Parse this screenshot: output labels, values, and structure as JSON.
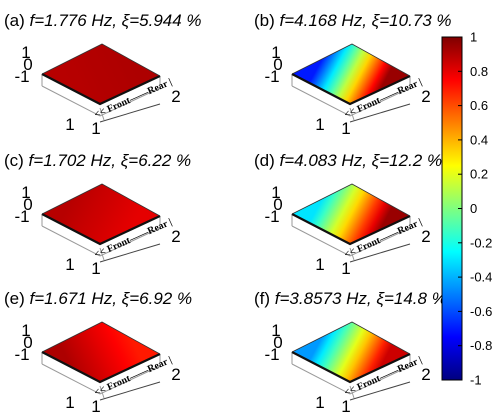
{
  "chart_data": {
    "type": "heatmap",
    "description_kind": "3d-mode-shape-surfaces",
    "panels": [
      {
        "id": "a",
        "label": "(a)",
        "freq_text": "f=1.776 Hz,",
        "damp_text": "ξ=5.944 %",
        "f_hz": 1.776,
        "xi_pct": 5.944,
        "corner_values": {
          "front_left": 0.9,
          "front_right": 0.88,
          "rear_left": 0.92,
          "rear_right": 0.9
        }
      },
      {
        "id": "b",
        "label": "(b)",
        "freq_text": "f=4.168 Hz,",
        "damp_text": "ξ=10.73 %",
        "f_hz": 4.168,
        "xi_pct": 10.73,
        "corner_values": {
          "front_left": -0.7,
          "front_right": 0.95,
          "rear_left": -0.7,
          "rear_right": 0.95
        }
      },
      {
        "id": "c",
        "label": "(c)",
        "freq_text": "f=1.702 Hz,",
        "damp_text": "ξ=6.22 %",
        "f_hz": 1.702,
        "xi_pct": 6.22,
        "corner_values": {
          "front_left": 0.88,
          "front_right": 0.85,
          "rear_left": 0.9,
          "rear_right": 0.75
        }
      },
      {
        "id": "d",
        "label": "(d)",
        "freq_text": "f=4.083 Hz,",
        "damp_text": "ξ=12.2 %",
        "f_hz": 4.083,
        "xi_pct": 12.2,
        "corner_values": {
          "front_left": -0.3,
          "front_right": 0.95,
          "rear_left": -0.3,
          "rear_right": 0.95
        }
      },
      {
        "id": "e",
        "label": "(e)",
        "freq_text": "f=1.671 Hz,",
        "damp_text": "ξ=6.92 %",
        "f_hz": 1.671,
        "xi_pct": 6.92,
        "corner_values": {
          "front_left": 0.92,
          "front_right": 0.9,
          "rear_left": 0.85,
          "rear_right": 0.55
        }
      },
      {
        "id": "f",
        "label": "(f)",
        "freq_text": "f=3.8573 Hz,",
        "damp_text": "ξ=14.8 %",
        "f_hz": 3.8573,
        "xi_pct": 14.8,
        "corner_values": {
          "front_left": -0.45,
          "front_right": 0.85,
          "rear_left": -0.45,
          "rear_right": 0.85
        }
      }
    ],
    "axes": {
      "z_ticks": [
        "1",
        "0",
        "-1"
      ],
      "z_range": [
        -1,
        1
      ],
      "x_tick": "1",
      "y_ticks": [
        "1",
        "2"
      ],
      "axis_label": "<< Front——Rear |"
    },
    "colorbar": {
      "range": [
        -1,
        1
      ],
      "ticks": [
        "1",
        "0.8",
        "0.6",
        "0.4",
        "0.2",
        "0",
        "-0.2",
        "-0.4",
        "-0.6",
        "-0.8",
        "-1"
      ],
      "tick_values": [
        1,
        0.8,
        0.6,
        0.4,
        0.2,
        0,
        -0.2,
        -0.4,
        -0.6,
        -0.8,
        -1
      ],
      "colormap": "jet",
      "colors": [
        "#00007f",
        "#0000ff",
        "#007fff",
        "#00ffff",
        "#7fff7f",
        "#ffff00",
        "#ff7f00",
        "#ff0000",
        "#7f0000"
      ]
    }
  }
}
